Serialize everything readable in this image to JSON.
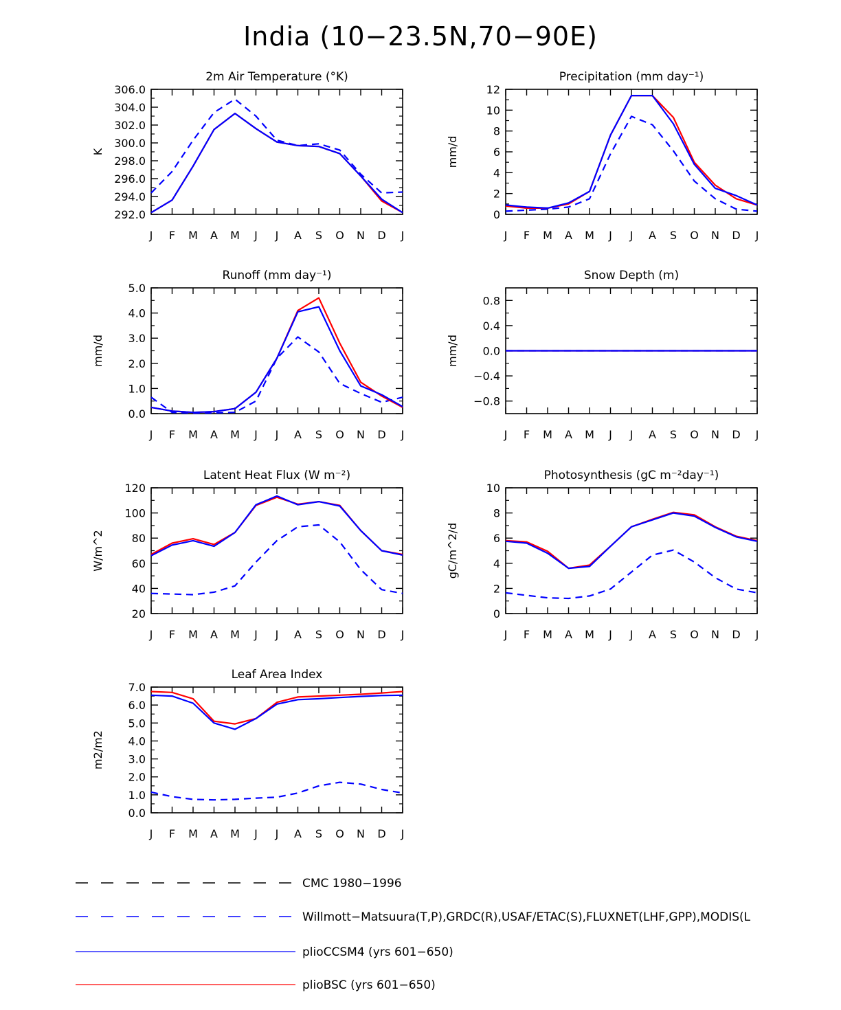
{
  "figure": {
    "title": "India (10−23.5N,70−90E)"
  },
  "colors": {
    "axis": "#000000",
    "cmc": "#000000",
    "obs": "#0000ff",
    "plioCCSM4": "#0000ff",
    "plioBSC": "#ff0000"
  },
  "chart_data": [
    {
      "type": "line",
      "title": "2m Air Temperature (°K)",
      "ylabel": "K",
      "xlabel": "",
      "categories": [
        "J",
        "F",
        "M",
        "A",
        "M",
        "J",
        "J",
        "A",
        "S",
        "O",
        "N",
        "D",
        "J"
      ],
      "ylim": [
        292.0,
        306.0
      ],
      "yticks": [
        "292.0",
        "294.0",
        "296.0",
        "298.0",
        "300.0",
        "302.0",
        "304.0",
        "306.0"
      ],
      "series": [
        {
          "name": "Willmott-Matsuura(T,P),GRDC(R),USAF/ETAC(S),FLUXNET(LHF,GPP),MODIS(L",
          "style": "dashed",
          "color": "#0000ff",
          "values": [
            294.4,
            296.8,
            300.3,
            303.4,
            304.9,
            303.0,
            300.3,
            299.7,
            299.9,
            299.2,
            296.5,
            294.4,
            294.5
          ]
        },
        {
          "name": "plioBSC (yrs 601−650)",
          "style": "solid",
          "color": "#ff0000",
          "values": [
            292.2,
            293.6,
            297.4,
            301.5,
            303.3,
            301.6,
            300.1,
            299.7,
            299.6,
            298.8,
            296.3,
            293.5,
            292.2
          ]
        },
        {
          "name": "plioCCSM4 (yrs 601−650)",
          "style": "solid",
          "color": "#0000ff",
          "values": [
            292.2,
            293.6,
            297.4,
            301.5,
            303.3,
            301.6,
            300.1,
            299.7,
            299.6,
            298.8,
            296.3,
            293.7,
            292.2
          ]
        }
      ]
    },
    {
      "type": "line",
      "title": "Precipitation (mm day⁻¹)",
      "ylabel": "mm/d",
      "xlabel": "",
      "categories": [
        "J",
        "F",
        "M",
        "A",
        "M",
        "J",
        "J",
        "A",
        "S",
        "O",
        "N",
        "D",
        "J"
      ],
      "ylim": [
        0,
        12
      ],
      "yticks": [
        "0",
        "2",
        "4",
        "6",
        "8",
        "10",
        "12"
      ],
      "series": [
        {
          "name": "Willmott-Matsuura(T,P),GRDC(R),USAF/ETAC(S),FLUXNET(LHF,GPP),MODIS(L",
          "style": "dashed",
          "color": "#0000ff",
          "values": [
            0.3,
            0.4,
            0.5,
            0.7,
            1.5,
            5.8,
            9.4,
            8.6,
            6.1,
            3.2,
            1.5,
            0.5,
            0.3
          ]
        },
        {
          "name": "plioBSC (yrs 601−650)",
          "style": "solid",
          "color": "#ff0000",
          "values": [
            0.8,
            0.6,
            0.6,
            1.0,
            2.2,
            7.6,
            11.4,
            11.4,
            9.3,
            5.0,
            2.8,
            1.5,
            0.9
          ]
        },
        {
          "name": "plioCCSM4 (yrs 601−650)",
          "style": "solid",
          "color": "#0000ff",
          "values": [
            0.9,
            0.7,
            0.6,
            1.1,
            2.2,
            7.6,
            11.4,
            11.4,
            8.7,
            4.8,
            2.5,
            1.8,
            0.9
          ]
        }
      ]
    },
    {
      "type": "line",
      "title": "Runoff (mm day⁻¹)",
      "ylabel": "mm/d",
      "xlabel": "",
      "categories": [
        "J",
        "F",
        "M",
        "A",
        "M",
        "J",
        "J",
        "A",
        "S",
        "O",
        "N",
        "D",
        "J"
      ],
      "ylim": [
        0.0,
        5.0
      ],
      "yticks": [
        "0.0",
        "1.0",
        "2.0",
        "3.0",
        "4.0",
        "5.0"
      ],
      "series": [
        {
          "name": "Willmott-Matsuura(T,P),GRDC(R),USAF/ETAC(S),FLUXNET(LHF,GPP),MODIS(L",
          "style": "dashed",
          "color": "#0000ff",
          "values": [
            0.65,
            0.05,
            0.02,
            0.03,
            0.05,
            0.5,
            2.2,
            3.05,
            2.45,
            1.2,
            0.8,
            0.45,
            0.65
          ]
        },
        {
          "name": "plioBSC (yrs 601−650)",
          "style": "solid",
          "color": "#ff0000",
          "values": [
            0.25,
            0.1,
            0.05,
            0.08,
            0.2,
            0.85,
            2.2,
            4.1,
            4.6,
            2.8,
            1.25,
            0.7,
            0.25
          ]
        },
        {
          "name": "plioCCSM4 (yrs 601−650)",
          "style": "solid",
          "color": "#0000ff",
          "values": [
            0.25,
            0.1,
            0.05,
            0.08,
            0.2,
            0.85,
            2.2,
            4.05,
            4.25,
            2.5,
            1.1,
            0.75,
            0.28
          ]
        }
      ]
    },
    {
      "type": "line",
      "title": "Snow Depth (m)",
      "ylabel": "mm/d",
      "xlabel": "",
      "categories": [
        "J",
        "F",
        "M",
        "A",
        "M",
        "J",
        "J",
        "A",
        "S",
        "O",
        "N",
        "D",
        "J"
      ],
      "ylim": [
        -1.0,
        1.0
      ],
      "yticks": [
        "−0.8",
        "−0.4",
        "0.0",
        "0.4",
        "0.8"
      ],
      "ytick_values": [
        -0.8,
        -0.4,
        0.0,
        0.4,
        0.8
      ],
      "series": [
        {
          "name": "Willmott-Matsuura(T,P),GRDC(R),USAF/ETAC(S),FLUXNET(LHF,GPP),MODIS(L",
          "style": "dashed",
          "color": "#0000ff",
          "values": [
            0,
            0,
            0,
            0,
            0,
            0,
            0,
            0,
            0,
            0,
            0,
            0,
            0
          ]
        },
        {
          "name": "plioBSC (yrs 601−650)",
          "style": "solid",
          "color": "#ff0000",
          "values": [
            0,
            0,
            0,
            0,
            0,
            0,
            0,
            0,
            0,
            0,
            0,
            0,
            0
          ]
        },
        {
          "name": "plioCCSM4 (yrs 601−650)",
          "style": "solid",
          "color": "#0000ff",
          "values": [
            0,
            0,
            0,
            0,
            0,
            0,
            0,
            0,
            0,
            0,
            0,
            0,
            0
          ]
        }
      ]
    },
    {
      "type": "line",
      "title": "Latent Heat Flux (W m⁻²)",
      "ylabel": "W/m^2",
      "xlabel": "",
      "categories": [
        "J",
        "F",
        "M",
        "A",
        "M",
        "J",
        "J",
        "A",
        "S",
        "O",
        "N",
        "D",
        "J"
      ],
      "ylim": [
        20,
        120
      ],
      "yticks": [
        "20",
        "40",
        "60",
        "80",
        "100",
        "120"
      ],
      "series": [
        {
          "name": "Willmott-Matsuura(T,P),GRDC(R),USAF/ETAC(S),FLUXNET(LHF,GPP),MODIS(L",
          "style": "dashed",
          "color": "#0000ff",
          "values": [
            36,
            35.5,
            35,
            37,
            42,
            61,
            78,
            89,
            90.5,
            77,
            55,
            39,
            36
          ]
        },
        {
          "name": "plioBSC (yrs 601−650)",
          "style": "solid",
          "color": "#ff0000",
          "values": [
            67,
            76,
            79.5,
            75,
            84.5,
            106,
            112.5,
            107,
            109,
            106,
            86,
            70,
            67
          ]
        },
        {
          "name": "plioCCSM4 (yrs 601−650)",
          "style": "solid",
          "color": "#0000ff",
          "values": [
            66,
            74.5,
            78,
            73.5,
            84.5,
            106.5,
            113.5,
            106.5,
            109,
            105.5,
            86,
            70,
            66.5
          ]
        }
      ]
    },
    {
      "type": "line",
      "title": "Photosynthesis (gC m⁻²day⁻¹)",
      "ylabel": "gC/m^2/d",
      "xlabel": "",
      "categories": [
        "J",
        "F",
        "M",
        "A",
        "M",
        "J",
        "J",
        "A",
        "S",
        "O",
        "N",
        "D",
        "J"
      ],
      "ylim": [
        0,
        10
      ],
      "yticks": [
        "0",
        "2",
        "4",
        "6",
        "8",
        "10"
      ],
      "series": [
        {
          "name": "Willmott-Matsuura(T,P),GRDC(R),USAF/ETAC(S),FLUXNET(LHF,GPP),MODIS(L",
          "style": "dashed",
          "color": "#0000ff",
          "values": [
            1.65,
            1.45,
            1.25,
            1.2,
            1.4,
            1.95,
            3.3,
            4.65,
            5.05,
            4.1,
            2.85,
            1.95,
            1.65
          ]
        },
        {
          "name": "plioBSC (yrs 601−650)",
          "style": "solid",
          "color": "#ff0000",
          "values": [
            5.8,
            5.7,
            4.95,
            3.6,
            3.85,
            5.35,
            6.9,
            7.5,
            8.05,
            7.85,
            6.9,
            6.15,
            5.8
          ]
        },
        {
          "name": "plioCCSM4 (yrs 601−650)",
          "style": "solid",
          "color": "#0000ff",
          "values": [
            5.75,
            5.6,
            4.8,
            3.6,
            3.75,
            5.35,
            6.9,
            7.45,
            8.0,
            7.75,
            6.85,
            6.1,
            5.75
          ]
        }
      ]
    },
    {
      "type": "line",
      "title": "Leaf Area Index",
      "ylabel": "m2/m2",
      "xlabel": "",
      "categories": [
        "J",
        "F",
        "M",
        "A",
        "M",
        "J",
        "J",
        "A",
        "S",
        "O",
        "N",
        "D",
        "J"
      ],
      "ylim": [
        0.0,
        7.0
      ],
      "yticks": [
        "0.0",
        "1.0",
        "2.0",
        "3.0",
        "4.0",
        "5.0",
        "6.0",
        "7.0"
      ],
      "series": [
        {
          "name": "Willmott-Matsuura(T,P),GRDC(R),USAF/ETAC(S),FLUXNET(LHF,GPP),MODIS(L",
          "style": "dashed",
          "color": "#0000ff",
          "values": [
            1.15,
            0.9,
            0.75,
            0.72,
            0.75,
            0.82,
            0.87,
            1.1,
            1.5,
            1.7,
            1.6,
            1.3,
            1.1
          ]
        },
        {
          "name": "plioBSC (yrs 601−650)",
          "style": "solid",
          "color": "#ff0000",
          "values": [
            6.75,
            6.7,
            6.35,
            5.1,
            4.95,
            5.25,
            6.15,
            6.45,
            6.5,
            6.55,
            6.6,
            6.67,
            6.75
          ]
        },
        {
          "name": "plioCCSM4 (yrs 601−650)",
          "style": "solid",
          "color": "#0000ff",
          "values": [
            6.55,
            6.5,
            6.1,
            5.0,
            4.65,
            5.25,
            6.05,
            6.3,
            6.35,
            6.42,
            6.48,
            6.53,
            6.55
          ]
        }
      ]
    }
  ],
  "legend": {
    "placement": "bottom",
    "items": [
      {
        "label": "CMC 1980−1996",
        "style": "dashed",
        "color": "#000000"
      },
      {
        "label": "Willmott−Matsuura(T,P),GRDC(R),USAF/ETAC(S),FLUXNET(LHF,GPP),MODIS(L",
        "style": "dashed",
        "color": "#0000ff"
      },
      {
        "label": "plioCCSM4 (yrs 601−650)",
        "style": "solid",
        "color": "#0000ff"
      },
      {
        "label": "plioBSC (yrs 601−650)",
        "style": "solid",
        "color": "#ff0000"
      }
    ]
  }
}
